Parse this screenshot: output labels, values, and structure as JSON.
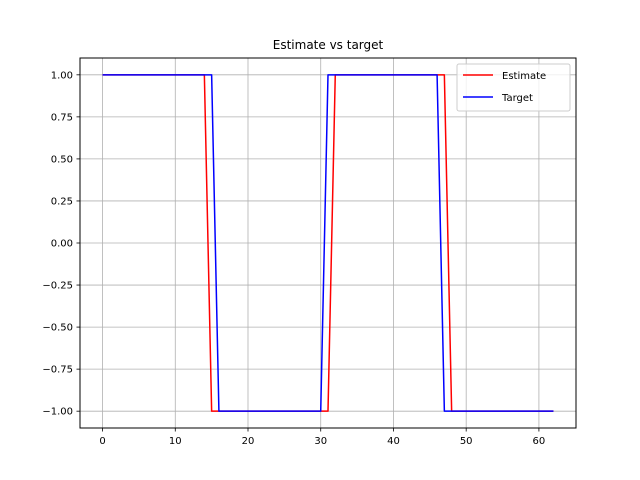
{
  "chart_data": {
    "type": "line",
    "title": "Estimate vs target",
    "xlabel": "",
    "ylabel": "",
    "xlim": [
      -3.1,
      65.1
    ],
    "ylim": [
      -1.1,
      1.1
    ],
    "x_ticks": [
      0,
      10,
      20,
      30,
      40,
      50,
      60
    ],
    "x_tick_labels": [
      "0",
      "10",
      "20",
      "30",
      "40",
      "50",
      "60"
    ],
    "y_ticks": [
      1.0,
      0.75,
      0.5,
      0.25,
      0.0,
      -0.25,
      -0.5,
      -0.75,
      -1.0
    ],
    "y_tick_labels": [
      "1.00",
      "0.75",
      "0.50",
      "0.25",
      "0.00",
      "−0.25",
      "−0.50",
      "−0.75",
      "−1.00"
    ],
    "grid": true,
    "legend_position": "top-right",
    "series": [
      {
        "name": "Estimate",
        "color": "#ff0000",
        "points": [
          [
            0,
            1
          ],
          [
            14,
            1
          ],
          [
            15,
            -1
          ],
          [
            31,
            -1
          ],
          [
            32,
            1
          ],
          [
            47,
            1
          ],
          [
            48,
            -1
          ],
          [
            62,
            -1
          ]
        ]
      },
      {
        "name": "Target",
        "color": "#0000ff",
        "points": [
          [
            0,
            1
          ],
          [
            15,
            1
          ],
          [
            16,
            -1
          ],
          [
            30,
            -1
          ],
          [
            31,
            1
          ],
          [
            46,
            1
          ],
          [
            47,
            -1
          ],
          [
            62,
            -1
          ]
        ]
      }
    ]
  }
}
